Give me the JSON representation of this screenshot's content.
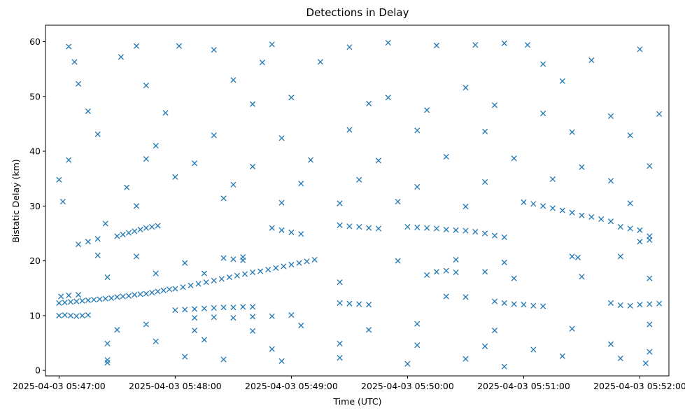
{
  "chart_data": {
    "type": "scatter",
    "title": "Detections in Delay",
    "xlabel": "Time (UTC)",
    "ylabel": "Bistatic Delay (km)",
    "x_axis_kind": "datetime",
    "x_tick_labels": [
      "2025-04-03 05:47:00",
      "2025-04-03 05:48:00",
      "2025-04-03 05:49:00",
      "2025-04-03 05:50:00",
      "2025-04-03 05:51:00",
      "2025-04-03 05:52:00"
    ],
    "y_ticks": [
      0,
      10,
      20,
      30,
      40,
      50,
      60
    ],
    "xlim": [
      "2025-04-03 05:46:53",
      "2025-04-03 05:52:15"
    ],
    "ylim": [
      -1,
      63
    ],
    "grid": false,
    "legend": "none",
    "marker": "x",
    "color": "#1f77b4",
    "series": [
      {
        "points": [
          [
            "05:47:00",
            12.3
          ],
          [
            "05:47:03",
            12.4
          ],
          [
            "05:47:06",
            12.5
          ],
          [
            "05:47:09",
            12.6
          ],
          [
            "05:47:12",
            12.7
          ],
          [
            "05:47:15",
            12.8
          ],
          [
            "05:47:18",
            12.9
          ],
          [
            "05:47:21",
            13.0
          ],
          [
            "05:47:24",
            13.1
          ],
          [
            "05:47:27",
            13.2
          ],
          [
            "05:47:30",
            13.4
          ],
          [
            "05:47:33",
            13.5
          ],
          [
            "05:47:36",
            13.6
          ],
          [
            "05:47:39",
            13.8
          ],
          [
            "05:47:42",
            13.9
          ],
          [
            "05:47:45",
            14.0
          ],
          [
            "05:47:48",
            14.2
          ],
          [
            "05:47:51",
            14.4
          ],
          [
            "05:47:54",
            14.6
          ],
          [
            "05:47:57",
            14.8
          ],
          [
            "05:48:00",
            14.9
          ],
          [
            "05:48:04",
            15.2
          ],
          [
            "05:48:08",
            15.5
          ],
          [
            "05:48:12",
            15.8
          ],
          [
            "05:48:16",
            16.1
          ],
          [
            "05:48:20",
            16.4
          ],
          [
            "05:48:24",
            16.7
          ],
          [
            "05:48:28",
            17.0
          ],
          [
            "05:48:32",
            17.3
          ],
          [
            "05:48:36",
            17.6
          ],
          [
            "05:48:40",
            17.9
          ],
          [
            "05:48:44",
            18.1
          ],
          [
            "05:48:48",
            18.4
          ],
          [
            "05:48:52",
            18.7
          ],
          [
            "05:48:56",
            19.0
          ],
          [
            "05:49:00",
            19.3
          ],
          [
            "05:49:04",
            19.6
          ],
          [
            "05:49:08",
            19.9
          ],
          [
            "05:49:12",
            20.2
          ],
          [
            "05:47:00",
            10.0
          ],
          [
            "05:47:03",
            10.1
          ],
          [
            "05:47:06",
            10.0
          ],
          [
            "05:47:09",
            9.9
          ],
          [
            "05:47:12",
            10.0
          ],
          [
            "05:47:15",
            10.1
          ],
          [
            "05:47:01",
            13.5
          ],
          [
            "05:47:05",
            13.7
          ],
          [
            "05:47:10",
            13.8
          ],
          [
            "05:47:30",
            24.5
          ],
          [
            "05:47:33",
            24.8
          ],
          [
            "05:47:36",
            25.1
          ],
          [
            "05:47:39",
            25.4
          ],
          [
            "05:47:42",
            25.7
          ],
          [
            "05:47:45",
            26.0
          ],
          [
            "05:47:48",
            26.2
          ],
          [
            "05:47:51",
            26.4
          ],
          [
            "05:47:10",
            23.0
          ],
          [
            "05:47:15",
            23.5
          ],
          [
            "05:47:20",
            24.0
          ],
          [
            "05:47:24",
            26.8
          ],
          [
            "05:48:00",
            11.0
          ],
          [
            "05:48:05",
            11.1
          ],
          [
            "05:48:10",
            11.2
          ],
          [
            "05:48:15",
            11.3
          ],
          [
            "05:48:20",
            11.4
          ],
          [
            "05:48:25",
            11.5
          ],
          [
            "05:48:30",
            11.5
          ],
          [
            "05:48:35",
            11.6
          ],
          [
            "05:48:40",
            11.6
          ],
          [
            "05:48:10",
            9.6
          ],
          [
            "05:48:20",
            9.7
          ],
          [
            "05:48:30",
            9.6
          ],
          [
            "05:48:40",
            9.8
          ],
          [
            "05:48:50",
            9.9
          ],
          [
            "05:49:00",
            10.1
          ],
          [
            "05:48:25",
            20.5
          ],
          [
            "05:48:30",
            20.3
          ],
          [
            "05:48:35",
            20.1
          ],
          [
            "05:48:50",
            26.0
          ],
          [
            "05:48:55",
            25.6
          ],
          [
            "05:49:00",
            25.2
          ],
          [
            "05:49:05",
            24.9
          ],
          [
            "05:49:25",
            26.5
          ],
          [
            "05:49:30",
            26.3
          ],
          [
            "05:49:35",
            26.2
          ],
          [
            "05:49:40",
            26.0
          ],
          [
            "05:49:45",
            25.9
          ],
          [
            "05:49:25",
            12.3
          ],
          [
            "05:49:30",
            12.2
          ],
          [
            "05:49:35",
            12.1
          ],
          [
            "05:49:40",
            12.0
          ],
          [
            "05:50:00",
            26.2
          ],
          [
            "05:50:05",
            26.1
          ],
          [
            "05:50:10",
            26.0
          ],
          [
            "05:50:15",
            25.9
          ],
          [
            "05:50:20",
            25.7
          ],
          [
            "05:50:25",
            25.6
          ],
          [
            "05:50:30",
            25.5
          ],
          [
            "05:50:35",
            25.3
          ],
          [
            "05:50:40",
            25.0
          ],
          [
            "05:50:45",
            24.6
          ],
          [
            "05:50:50",
            24.3
          ],
          [
            "05:50:15",
            18.0
          ],
          [
            "05:50:20",
            18.2
          ],
          [
            "05:50:25",
            17.9
          ],
          [
            "05:50:40",
            18.0
          ],
          [
            "05:50:20",
            13.5
          ],
          [
            "05:50:30",
            13.4
          ],
          [
            "05:50:45",
            12.6
          ],
          [
            "05:50:50",
            12.3
          ],
          [
            "05:50:55",
            12.1
          ],
          [
            "05:51:00",
            12.0
          ],
          [
            "05:51:05",
            11.8
          ],
          [
            "05:51:10",
            11.7
          ],
          [
            "05:51:00",
            30.7
          ],
          [
            "05:51:05",
            30.4
          ],
          [
            "05:51:10",
            30.0
          ],
          [
            "05:51:15",
            29.6
          ],
          [
            "05:51:20",
            29.2
          ],
          [
            "05:51:25",
            28.8
          ],
          [
            "05:51:30",
            28.3
          ],
          [
            "05:51:35",
            28.0
          ],
          [
            "05:51:40",
            27.6
          ],
          [
            "05:51:45",
            27.2
          ],
          [
            "05:51:25",
            20.8
          ],
          [
            "05:51:28",
            20.6
          ],
          [
            "05:51:45",
            12.3
          ],
          [
            "05:51:50",
            11.9
          ],
          [
            "05:51:55",
            11.8
          ],
          [
            "05:52:00",
            12.0
          ],
          [
            "05:52:05",
            12.1
          ],
          [
            "05:52:10",
            12.2
          ],
          [
            "05:51:50",
            26.2
          ],
          [
            "05:51:55",
            25.9
          ],
          [
            "05:52:00",
            25.6
          ],
          [
            "05:52:05",
            24.5
          ],
          [
            "05:52:00",
            23.5
          ],
          [
            "05:52:05",
            23.8
          ],
          [
            "05:47:05",
            59.1
          ],
          [
            "05:47:40",
            59.2
          ],
          [
            "05:48:02",
            59.2
          ],
          [
            "05:48:20",
            58.5
          ],
          [
            "05:48:50",
            59.5
          ],
          [
            "05:49:30",
            59.0
          ],
          [
            "05:49:50",
            59.8
          ],
          [
            "05:50:15",
            59.3
          ],
          [
            "05:50:35",
            59.4
          ],
          [
            "05:50:50",
            59.7
          ],
          [
            "05:51:02",
            59.4
          ],
          [
            "05:51:35",
            56.6
          ],
          [
            "05:52:00",
            58.6
          ],
          [
            "05:47:08",
            56.3
          ],
          [
            "05:47:32",
            57.2
          ],
          [
            "05:48:45",
            56.2
          ],
          [
            "05:49:15",
            56.3
          ],
          [
            "05:51:10",
            55.9
          ],
          [
            "05:47:10",
            52.3
          ],
          [
            "05:47:45",
            52.0
          ],
          [
            "05:48:30",
            53.0
          ],
          [
            "05:49:50",
            49.8
          ],
          [
            "05:50:30",
            51.6
          ],
          [
            "05:51:20",
            52.8
          ],
          [
            "05:47:15",
            47.3
          ],
          [
            "05:47:55",
            47.0
          ],
          [
            "05:48:40",
            48.6
          ],
          [
            "05:49:00",
            49.8
          ],
          [
            "05:49:40",
            48.7
          ],
          [
            "05:50:10",
            47.5
          ],
          [
            "05:50:45",
            48.4
          ],
          [
            "05:51:10",
            46.9
          ],
          [
            "05:51:45",
            46.4
          ],
          [
            "05:52:10",
            46.8
          ],
          [
            "05:47:20",
            43.1
          ],
          [
            "05:47:50",
            41.0
          ],
          [
            "05:48:20",
            42.9
          ],
          [
            "05:48:55",
            42.4
          ],
          [
            "05:49:30",
            43.9
          ],
          [
            "05:50:05",
            43.8
          ],
          [
            "05:50:40",
            43.6
          ],
          [
            "05:51:25",
            43.5
          ],
          [
            "05:51:55",
            42.9
          ],
          [
            "05:47:05",
            38.4
          ],
          [
            "05:47:45",
            38.6
          ],
          [
            "05:48:10",
            37.8
          ],
          [
            "05:48:40",
            37.2
          ],
          [
            "05:49:10",
            38.4
          ],
          [
            "05:49:45",
            38.3
          ],
          [
            "05:50:20",
            39.0
          ],
          [
            "05:50:55",
            38.7
          ],
          [
            "05:51:30",
            37.1
          ],
          [
            "05:52:05",
            37.3
          ],
          [
            "05:47:00",
            34.8
          ],
          [
            "05:47:35",
            33.4
          ],
          [
            "05:48:00",
            35.3
          ],
          [
            "05:48:30",
            33.9
          ],
          [
            "05:49:05",
            34.1
          ],
          [
            "05:49:35",
            34.8
          ],
          [
            "05:50:05",
            33.5
          ],
          [
            "05:50:40",
            34.4
          ],
          [
            "05:51:15",
            34.9
          ],
          [
            "05:51:45",
            34.6
          ],
          [
            "05:47:02",
            30.8
          ],
          [
            "05:47:40",
            30.0
          ],
          [
            "05:48:25",
            31.4
          ],
          [
            "05:48:55",
            30.6
          ],
          [
            "05:49:25",
            30.5
          ],
          [
            "05:49:55",
            30.8
          ],
          [
            "05:50:30",
            29.9
          ],
          [
            "05:51:55",
            30.5
          ],
          [
            "05:47:20",
            21.0
          ],
          [
            "05:47:40",
            20.8
          ],
          [
            "05:48:05",
            19.6
          ],
          [
            "05:48:35",
            20.7
          ],
          [
            "05:49:55",
            20.0
          ],
          [
            "05:50:25",
            20.2
          ],
          [
            "05:50:50",
            19.7
          ],
          [
            "05:51:50",
            20.8
          ],
          [
            "05:47:25",
            17.0
          ],
          [
            "05:47:50",
            17.7
          ],
          [
            "05:48:15",
            17.7
          ],
          [
            "05:49:25",
            16.1
          ],
          [
            "05:50:10",
            17.4
          ],
          [
            "05:50:55",
            16.8
          ],
          [
            "05:51:30",
            17.1
          ],
          [
            "05:52:05",
            16.8
          ],
          [
            "05:47:30",
            7.4
          ],
          [
            "05:47:45",
            8.4
          ],
          [
            "05:48:10",
            7.3
          ],
          [
            "05:48:40",
            7.2
          ],
          [
            "05:49:05",
            8.2
          ],
          [
            "05:49:40",
            7.4
          ],
          [
            "05:50:05",
            8.5
          ],
          [
            "05:50:45",
            7.3
          ],
          [
            "05:51:25",
            7.6
          ],
          [
            "05:52:05",
            8.4
          ],
          [
            "05:47:25",
            4.9
          ],
          [
            "05:47:50",
            5.3
          ],
          [
            "05:48:15",
            5.6
          ],
          [
            "05:48:50",
            3.9
          ],
          [
            "05:49:25",
            4.9
          ],
          [
            "05:50:05",
            4.6
          ],
          [
            "05:50:40",
            4.4
          ],
          [
            "05:51:05",
            3.8
          ],
          [
            "05:51:45",
            4.8
          ],
          [
            "05:52:05",
            3.4
          ],
          [
            "05:47:25",
            1.9
          ],
          [
            "05:47:25",
            1.4
          ],
          [
            "05:48:05",
            2.5
          ],
          [
            "05:48:25",
            2.0
          ],
          [
            "05:48:55",
            1.7
          ],
          [
            "05:49:25",
            2.3
          ],
          [
            "05:50:00",
            1.2
          ],
          [
            "05:50:30",
            2.1
          ],
          [
            "05:50:50",
            0.7
          ],
          [
            "05:51:20",
            2.6
          ],
          [
            "05:51:50",
            2.2
          ],
          [
            "05:52:03",
            1.3
          ]
        ]
      }
    ]
  }
}
